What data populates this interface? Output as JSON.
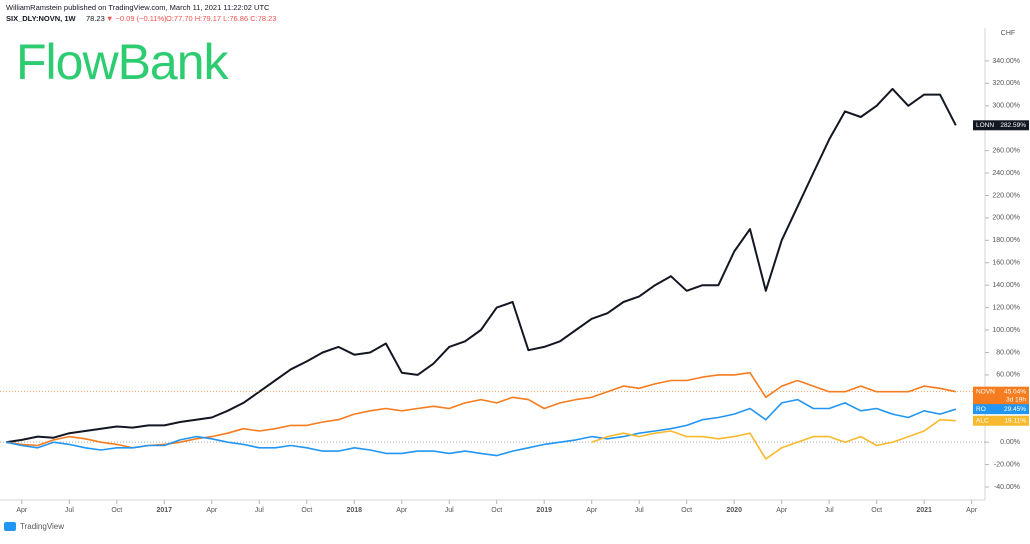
{
  "header": {
    "publisher": "WilliamRamstein published on TradingView.com, March 11, 2021 11:22:02 UTC",
    "symbol": "SIX_DLY:NOVN, 1W",
    "last": "78.23",
    "change": "▼ −0.09 (−0.11%)",
    "ohlc": "O:77.70 H:79.17 L:76.86 C:78.23"
  },
  "logo": "FlowBank",
  "footer": "TradingView",
  "chart_data": {
    "type": "line",
    "currency": "CHF",
    "zero_line": true,
    "grid": false,
    "categories": [
      null,
      "Apr",
      null,
      null,
      "Jul",
      null,
      null,
      "Oct",
      null,
      null,
      "2017",
      null,
      null,
      "Apr",
      null,
      null,
      "Jul",
      null,
      null,
      "Oct",
      null,
      null,
      "2018",
      null,
      null,
      "Apr",
      null,
      null,
      "Jul",
      null,
      null,
      "Oct",
      null,
      null,
      "2019",
      null,
      null,
      "Apr",
      null,
      null,
      "Jul",
      null,
      null,
      "Oct",
      null,
      null,
      "2020",
      null,
      null,
      "Apr",
      null,
      null,
      "Jul",
      null,
      null,
      "Oct",
      null,
      null,
      "2021",
      null,
      null,
      "Apr"
    ],
    "ylim": [
      -48,
      364
    ],
    "yticks": [
      {
        "value": -40,
        "label": "-40.00%"
      },
      {
        "value": -20,
        "label": "-20.00%"
      },
      {
        "value": 0,
        "label": "0.00%"
      },
      {
        "value": 20,
        "label": "20.00%"
      },
      {
        "value": 40,
        "label": "40.00%"
      },
      {
        "value": 60,
        "label": "60.00%"
      },
      {
        "value": 80,
        "label": "80.00%"
      },
      {
        "value": 100,
        "label": "100.00%"
      },
      {
        "value": 120,
        "label": "120.00%"
      },
      {
        "value": 140,
        "label": "140.00%"
      },
      {
        "value": 160,
        "label": "160.00%"
      },
      {
        "value": 180,
        "label": "180.00%"
      },
      {
        "value": 200,
        "label": "200.00%"
      },
      {
        "value": 220,
        "label": "220.00%"
      },
      {
        "value": 240,
        "label": "240.00%"
      },
      {
        "value": 260,
        "label": "260.00%"
      },
      {
        "value": 280,
        "label": "280.00%"
      },
      {
        "value": 300,
        "label": "300.00%"
      },
      {
        "value": 320,
        "label": "320.00%"
      },
      {
        "value": 340,
        "label": "340.00%"
      }
    ],
    "series": [
      {
        "name": "LONN",
        "color": "#131722",
        "end_label": "282.59%",
        "values": [
          0,
          2,
          5,
          4,
          8,
          10,
          12,
          14,
          13,
          15,
          15,
          18,
          20,
          22,
          28,
          35,
          45,
          55,
          65,
          72,
          80,
          85,
          78,
          80,
          88,
          62,
          60,
          70,
          85,
          90,
          100,
          120,
          125,
          82,
          85,
          90,
          100,
          110,
          115,
          125,
          130,
          140,
          148,
          135,
          140,
          140,
          170,
          190,
          135,
          180,
          210,
          240,
          270,
          295,
          290,
          300,
          315,
          300,
          310,
          310,
          282.59,
          null
        ]
      },
      {
        "name": "NOVN",
        "color": "#f57c1f",
        "end_label": "45.04%",
        "countdown": "3d 19h",
        "price_line": true,
        "values": [
          0,
          -2,
          -3,
          2,
          5,
          3,
          0,
          -2,
          -5,
          -3,
          -2,
          0,
          3,
          5,
          8,
          12,
          10,
          12,
          15,
          15,
          18,
          20,
          25,
          28,
          30,
          28,
          30,
          32,
          30,
          35,
          38,
          35,
          40,
          38,
          30,
          35,
          38,
          40,
          45,
          50,
          48,
          52,
          55,
          55,
          58,
          60,
          60,
          62,
          40,
          50,
          55,
          50,
          45,
          45,
          50,
          45,
          45,
          45,
          50,
          48,
          45.04,
          null
        ]
      },
      {
        "name": "RO",
        "color": "#2196f3",
        "end_label": "29.45%",
        "values": [
          0,
          -3,
          -5,
          0,
          -2,
          -5,
          -7,
          -5,
          -5,
          -3,
          -3,
          2,
          5,
          3,
          0,
          -2,
          -5,
          -5,
          -3,
          -5,
          -8,
          -8,
          -5,
          -7,
          -10,
          -10,
          -8,
          -8,
          -10,
          -8,
          -10,
          -12,
          -8,
          -5,
          -2,
          0,
          2,
          5,
          3,
          5,
          8,
          10,
          12,
          15,
          20,
          22,
          25,
          30,
          20,
          35,
          38,
          30,
          30,
          35,
          28,
          30,
          25,
          22,
          28,
          25,
          29.45,
          null
        ]
      },
      {
        "name": "ALC",
        "color": "#f9b92e",
        "end_label": "19.11%",
        "values": [
          null,
          null,
          null,
          null,
          null,
          null,
          null,
          null,
          null,
          null,
          null,
          null,
          null,
          null,
          null,
          null,
          null,
          null,
          null,
          null,
          null,
          null,
          null,
          null,
          null,
          null,
          null,
          null,
          null,
          null,
          null,
          null,
          null,
          null,
          null,
          null,
          null,
          0,
          5,
          8,
          5,
          8,
          10,
          5,
          5,
          3,
          5,
          8,
          -15,
          -5,
          0,
          5,
          5,
          0,
          5,
          -3,
          0,
          5,
          10,
          20,
          19.11,
          null
        ]
      }
    ]
  }
}
